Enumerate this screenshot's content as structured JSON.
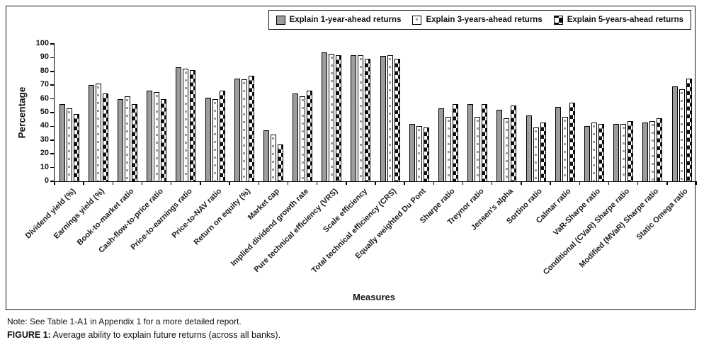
{
  "chart_data": {
    "type": "bar",
    "title": "",
    "xlabel": "Measures",
    "ylabel": "Percentage",
    "ylim": [
      0,
      100
    ],
    "ytick_step": 10,
    "grid": false,
    "legend_position": "top-right",
    "categories": [
      "Dividend yield (%)",
      "Earnings yield (%)",
      "Book-to-market ratio",
      "Cash-flow-to-price ratio",
      "Price-to-earnings ratio",
      "Price-to-NAV ratio",
      "Return on equity (%)",
      "Market cap",
      "Implied dividend growth rate",
      "Pure technical efficiency (VRS)",
      "Scale efficiency",
      "Total technical efficiency (CRS)",
      "Equally weighted Du Pont",
      "Sharpe ratio",
      "Treynor ratio",
      "Jensen's alpha",
      "Sortino ratio",
      "Calmar ratio",
      "VaR-Sharpe ratio",
      "Conditional (CVaR) Sharpe ratio",
      "Modified (MVaR) Sharpe ratio",
      "Static Omega ratio"
    ],
    "series": [
      {
        "name": "Explain 1-year-ahead returns",
        "style": "solid-gray",
        "values": [
          56,
          70,
          60,
          66,
          83,
          61,
          75,
          37,
          64,
          94,
          92,
          91,
          42,
          53,
          56,
          52,
          48,
          54,
          40,
          42,
          43,
          69
        ]
      },
      {
        "name": "Explain 3-years-ahead returns",
        "style": "white-dotted",
        "values": [
          53,
          71,
          62,
          65,
          82,
          60,
          74,
          34,
          62,
          93,
          92,
          92,
          40,
          47,
          47,
          46,
          39,
          47,
          43,
          42,
          44,
          67
        ]
      },
      {
        "name": "Explain 5-years-ahead returns",
        "style": "black-white-checker",
        "values": [
          49,
          64,
          56,
          60,
          81,
          66,
          77,
          27,
          66,
          92,
          89,
          89,
          39,
          56,
          56,
          55,
          43,
          57,
          42,
          44,
          46,
          75
        ]
      }
    ]
  },
  "colors": {
    "bar_gray": "#9c9c9c",
    "bar_white": "#ffffff",
    "bar_checker_dark": "#0f0f0f",
    "axis": "#000000",
    "text": "#1a1a1a"
  },
  "footer": {
    "note": "Note: See Table 1-A1 in Appendix 1 for a more detailed report.",
    "figure_label": "FIGURE 1:",
    "figure_caption": " Average ability to explain future returns (across all banks)."
  }
}
